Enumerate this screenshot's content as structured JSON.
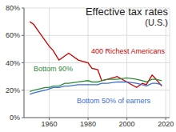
{
  "chart_data": {
    "type": "line",
    "title": "Effective tax rates",
    "subtitle": "(U.S.)",
    "x": [
      1950,
      1952,
      1955,
      1958,
      1960,
      1962,
      1965,
      1968,
      1970,
      1975,
      1980,
      1982,
      1985,
      1987,
      1990,
      1995,
      2000,
      2005,
      2008,
      2010,
      2013,
      2015,
      2018
    ],
    "series": [
      {
        "name": "400 Richest Americans",
        "color": "#cc0000",
        "values": [
          70,
          68,
          62,
          56,
          52,
          49,
          42,
          45,
          47,
          42,
          40,
          36,
          35,
          27,
          28,
          30,
          26,
          22,
          25,
          24,
          31,
          28,
          23
        ]
      },
      {
        "name": "Bottom 90%",
        "color": "#2e8b3a",
        "values": [
          19,
          20,
          21,
          22,
          22,
          23,
          23,
          25,
          25,
          26,
          27,
          26,
          26,
          27,
          28,
          28,
          29,
          28,
          27,
          26,
          28,
          28,
          27
        ]
      },
      {
        "name": "Bottom 50% of earners",
        "color": "#3b6fd0",
        "values": [
          17,
          18,
          19,
          20,
          21,
          22,
          22,
          23,
          23,
          24,
          24,
          24,
          24,
          25,
          25,
          26,
          26,
          25,
          24,
          23,
          25,
          25,
          24
        ]
      }
    ],
    "xlim": [
      1947,
      2022
    ],
    "xticks": [
      1960,
      1980,
      2000,
      2020
    ],
    "ylim": [
      0,
      80
    ],
    "yticks": [
      {
        "value": 0,
        "label": "0%"
      },
      {
        "value": 20,
        "label": "20%"
      },
      {
        "value": 40,
        "label": "40%"
      },
      {
        "value": 60,
        "label": "60%"
      },
      {
        "value": 80,
        "label": "80%"
      }
    ],
    "grid": true
  }
}
